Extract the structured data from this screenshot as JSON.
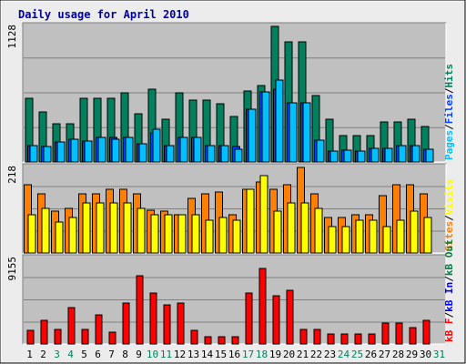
{
  "title": "Daily usage for April 2010",
  "colors": {
    "background": "#ececec",
    "panel": "#c0c0c0",
    "title": "#0000a0",
    "hits": "#00805c",
    "files": "#0040ff",
    "pages": "#00c0ff",
    "visits": "#ffff00",
    "sites": "#ff8000",
    "kb_out": "#008040",
    "kb_in": "#0000ff",
    "kb_f": "#ff0000",
    "weekday_label": "#000000",
    "weekend_label": "#00805c"
  },
  "chart_data": [
    {
      "type": "bar",
      "panel": "top",
      "ymax_label": "1128",
      "ylim": [
        0,
        1128
      ],
      "grid": true,
      "legend": [
        {
          "name": "Pages",
          "color_key": "pages"
        },
        {
          "name": "/",
          "color_key": null
        },
        {
          "name": "Files",
          "color_key": "files"
        },
        {
          "name": "/",
          "color_key": null
        },
        {
          "name": "Hits",
          "color_key": "hits"
        }
      ],
      "categories": [
        "1",
        "2",
        "3",
        "4",
        "5",
        "6",
        "7",
        "8",
        "9",
        "10",
        "11",
        "12",
        "13",
        "14",
        "15",
        "16",
        "17",
        "18",
        "19",
        "20",
        "21",
        "22",
        "23",
        "24",
        "25",
        "26",
        "27",
        "28",
        "29",
        "30",
        "31"
      ],
      "series": [
        {
          "name": "Hits",
          "values": [
            532,
            418,
            320,
            320,
            532,
            532,
            532,
            578,
            402,
            608,
            357,
            578,
            516,
            516,
            486,
            380,
            593,
            638,
            1128,
            1003,
            1003,
            555,
            357,
            220,
            220,
            220,
            334,
            334,
            357,
            296,
            0
          ]
        },
        {
          "name": "Files",
          "values": [
            137,
            129,
            167,
            190,
            175,
            205,
            205,
            205,
            152,
            243,
            137,
            205,
            205,
            137,
            137,
            129,
            440,
            585,
            608,
            494,
            494,
            182,
            91,
            99,
            91,
            114,
            114,
            137,
            137,
            106,
            0
          ]
        },
        {
          "name": "Pages",
          "values": [
            137,
            129,
            167,
            190,
            175,
            205,
            190,
            205,
            152,
            274,
            137,
            205,
            205,
            137,
            137,
            106,
            440,
            585,
            684,
            494,
            494,
            182,
            91,
            99,
            91,
            114,
            114,
            137,
            137,
            106,
            0
          ]
        }
      ]
    },
    {
      "type": "bar",
      "panel": "middle",
      "ymax_label": "218",
      "ylim": [
        0,
        218
      ],
      "grid": true,
      "legend": [
        {
          "name": "Sites",
          "color_key": "sites"
        },
        {
          "name": "/",
          "color_key": null
        },
        {
          "name": "Visits",
          "color_key": "visits"
        }
      ],
      "categories": [
        "1",
        "2",
        "3",
        "4",
        "5",
        "6",
        "7",
        "8",
        "9",
        "10",
        "11",
        "12",
        "13",
        "14",
        "15",
        "16",
        "17",
        "18",
        "19",
        "20",
        "21",
        "22",
        "23",
        "24",
        "25",
        "26",
        "27",
        "28",
        "29",
        "30",
        "31"
      ],
      "series": [
        {
          "name": "Sites",
          "values": [
            174,
            151,
            106,
            114,
            151,
            151,
            162,
            162,
            151,
            109,
            106,
            98,
            140,
            151,
            155,
            98,
            162,
            182,
            162,
            174,
            218,
            151,
            91,
            91,
            98,
            98,
            147,
            174,
            174,
            151,
            0
          ]
        },
        {
          "name": "Visits",
          "values": [
            98,
            113,
            79,
            91,
            128,
            128,
            128,
            128,
            113,
            98,
            98,
            98,
            98,
            83,
            91,
            83,
            162,
            196,
            106,
            128,
            128,
            113,
            68,
            68,
            83,
            83,
            68,
            83,
            106,
            91,
            0
          ]
        }
      ]
    },
    {
      "type": "bar",
      "panel": "bottom",
      "ymax_label": "9155",
      "ylim": [
        0,
        9155
      ],
      "grid": true,
      "legend": [
        {
          "name": "kB F",
          "color_key": "kb_f"
        },
        {
          "name": "/",
          "color_key": null
        },
        {
          "name": "kB In",
          "color_key": "kb_in"
        },
        {
          "name": "/",
          "color_key": null
        },
        {
          "name": "kB Out",
          "color_key": "kb_out"
        }
      ],
      "categories": [
        "1",
        "2",
        "3",
        "4",
        "5",
        "6",
        "7",
        "8",
        "9",
        "10",
        "11",
        "12",
        "13",
        "14",
        "15",
        "16",
        "17",
        "18",
        "19",
        "20",
        "21",
        "22",
        "23",
        "24",
        "25",
        "26",
        "27",
        "28",
        "29",
        "30",
        "31"
      ],
      "series": [
        {
          "name": "kB F",
          "values": [
            1433,
            2508,
            1523,
            3852,
            1523,
            3135,
            1254,
            4390,
            7347,
            5464,
            4209,
            4390,
            1433,
            762,
            762,
            762,
            5464,
            8094,
            5195,
            5733,
            1523,
            1523,
            1075,
            1075,
            1075,
            1075,
            2239,
            2239,
            1791,
            2508,
            0
          ]
        }
      ]
    }
  ],
  "day_labels": [
    {
      "text": "1",
      "weekend": false
    },
    {
      "text": "2",
      "weekend": false
    },
    {
      "text": "3",
      "weekend": true
    },
    {
      "text": "4",
      "weekend": true
    },
    {
      "text": "5",
      "weekend": false
    },
    {
      "text": "6",
      "weekend": false
    },
    {
      "text": "7",
      "weekend": false
    },
    {
      "text": "8",
      "weekend": false
    },
    {
      "text": "9",
      "weekend": false
    },
    {
      "text": "10",
      "weekend": true
    },
    {
      "text": "11",
      "weekend": true
    },
    {
      "text": "12",
      "weekend": false
    },
    {
      "text": "13",
      "weekend": false
    },
    {
      "text": "14",
      "weekend": false
    },
    {
      "text": "15",
      "weekend": false
    },
    {
      "text": "16",
      "weekend": false
    },
    {
      "text": "17",
      "weekend": true
    },
    {
      "text": "18",
      "weekend": true
    },
    {
      "text": "19",
      "weekend": false
    },
    {
      "text": "20",
      "weekend": false
    },
    {
      "text": "21",
      "weekend": false
    },
    {
      "text": "22",
      "weekend": false
    },
    {
      "text": "23",
      "weekend": false
    },
    {
      "text": "24",
      "weekend": true
    },
    {
      "text": "25",
      "weekend": true
    },
    {
      "text": "26",
      "weekend": false
    },
    {
      "text": "27",
      "weekend": false
    },
    {
      "text": "28",
      "weekend": false
    },
    {
      "text": "29",
      "weekend": false
    },
    {
      "text": "30",
      "weekend": false
    },
    {
      "text": "31",
      "weekend": true
    }
  ]
}
